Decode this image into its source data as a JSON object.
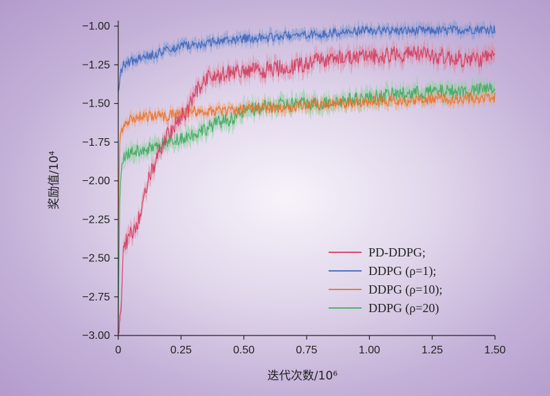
{
  "chart_data": {
    "type": "line",
    "xlabel": "迭代次数/10⁶",
    "ylabel": "奖励值/10⁴",
    "xlim": [
      0,
      1.5
    ],
    "ylim": [
      -3.0,
      -0.9
    ],
    "x_ticks": [
      "0",
      "0.25",
      "0.50",
      "0.75",
      "1.00",
      "1.25",
      "1.50"
    ],
    "x_tick_values": [
      0,
      0.25,
      0.5,
      0.75,
      1.0,
      1.25,
      1.5
    ],
    "y_ticks": [
      "−1.00",
      "−1.25",
      "−1.50",
      "−1.75",
      "−2.00",
      "−2.25",
      "−2.50",
      "−2.75",
      "−3.00"
    ],
    "y_tick_values": [
      -1.0,
      -1.25,
      -1.5,
      -1.75,
      -2.0,
      -2.25,
      -2.5,
      -2.75,
      -3.0
    ],
    "grid": false,
    "legend_position": "bottom-right",
    "series": [
      {
        "name": "PD-DDPG;",
        "color": "#d23a5e",
        "band": "#e2859b",
        "x": [
          0,
          0.01,
          0.02,
          0.03,
          0.05,
          0.08,
          0.1,
          0.12,
          0.15,
          0.18,
          0.2,
          0.22,
          0.25,
          0.28,
          0.3,
          0.33,
          0.35,
          0.4,
          0.45,
          0.5,
          0.6,
          0.7,
          0.8,
          0.9,
          1.0,
          1.1,
          1.2,
          1.3,
          1.4,
          1.5
        ],
        "y": [
          -3.0,
          -2.85,
          -2.45,
          -2.4,
          -2.35,
          -2.25,
          -2.15,
          -2.0,
          -1.87,
          -1.75,
          -1.7,
          -1.65,
          -1.6,
          -1.53,
          -1.45,
          -1.38,
          -1.33,
          -1.32,
          -1.3,
          -1.3,
          -1.28,
          -1.26,
          -1.22,
          -1.2,
          -1.2,
          -1.18,
          -1.18,
          -1.2,
          -1.22,
          -1.2
        ]
      },
      {
        "name": "DDPG (ρ=1);",
        "color": "#3a63b8",
        "band": "#7d99d4",
        "x": [
          0,
          0.01,
          0.02,
          0.05,
          0.1,
          0.15,
          0.2,
          0.25,
          0.3,
          0.4,
          0.5,
          0.6,
          0.7,
          0.8,
          0.9,
          1.0,
          1.1,
          1.2,
          1.3,
          1.4,
          1.5
        ],
        "y": [
          -1.4,
          -1.3,
          -1.25,
          -1.23,
          -1.2,
          -1.18,
          -1.15,
          -1.13,
          -1.12,
          -1.1,
          -1.08,
          -1.07,
          -1.06,
          -1.05,
          -1.04,
          -1.03,
          -1.03,
          -1.03,
          -1.03,
          -1.02,
          -1.02
        ]
      },
      {
        "name": "DDPG (ρ=10);",
        "color": "#e8702a",
        "band": "#f0a37a",
        "x": [
          0,
          0.005,
          0.01,
          0.02,
          0.05,
          0.1,
          0.15,
          0.2,
          0.25,
          0.3,
          0.4,
          0.5,
          0.6,
          0.7,
          0.8,
          0.9,
          1.0,
          1.1,
          1.2,
          1.3,
          1.4,
          1.5
        ],
        "y": [
          -2.3,
          -1.8,
          -1.7,
          -1.65,
          -1.6,
          -1.58,
          -1.58,
          -1.58,
          -1.56,
          -1.55,
          -1.55,
          -1.54,
          -1.53,
          -1.52,
          -1.5,
          -1.5,
          -1.49,
          -1.48,
          -1.48,
          -1.47,
          -1.47,
          -1.46
        ]
      },
      {
        "name": "DDPG (ρ=20)",
        "color": "#3daa5c",
        "band": "#8ccf9c",
        "x": [
          0,
          0.005,
          0.01,
          0.02,
          0.05,
          0.1,
          0.15,
          0.2,
          0.25,
          0.3,
          0.35,
          0.4,
          0.45,
          0.5,
          0.6,
          0.7,
          0.8,
          0.9,
          1.0,
          1.1,
          1.2,
          1.3,
          1.4,
          1.5
        ],
        "y": [
          -2.9,
          -2.2,
          -1.95,
          -1.85,
          -1.82,
          -1.8,
          -1.78,
          -1.75,
          -1.72,
          -1.7,
          -1.66,
          -1.62,
          -1.6,
          -1.55,
          -1.52,
          -1.5,
          -1.5,
          -1.48,
          -1.46,
          -1.44,
          -1.43,
          -1.42,
          -1.42,
          -1.4
        ]
      }
    ]
  }
}
